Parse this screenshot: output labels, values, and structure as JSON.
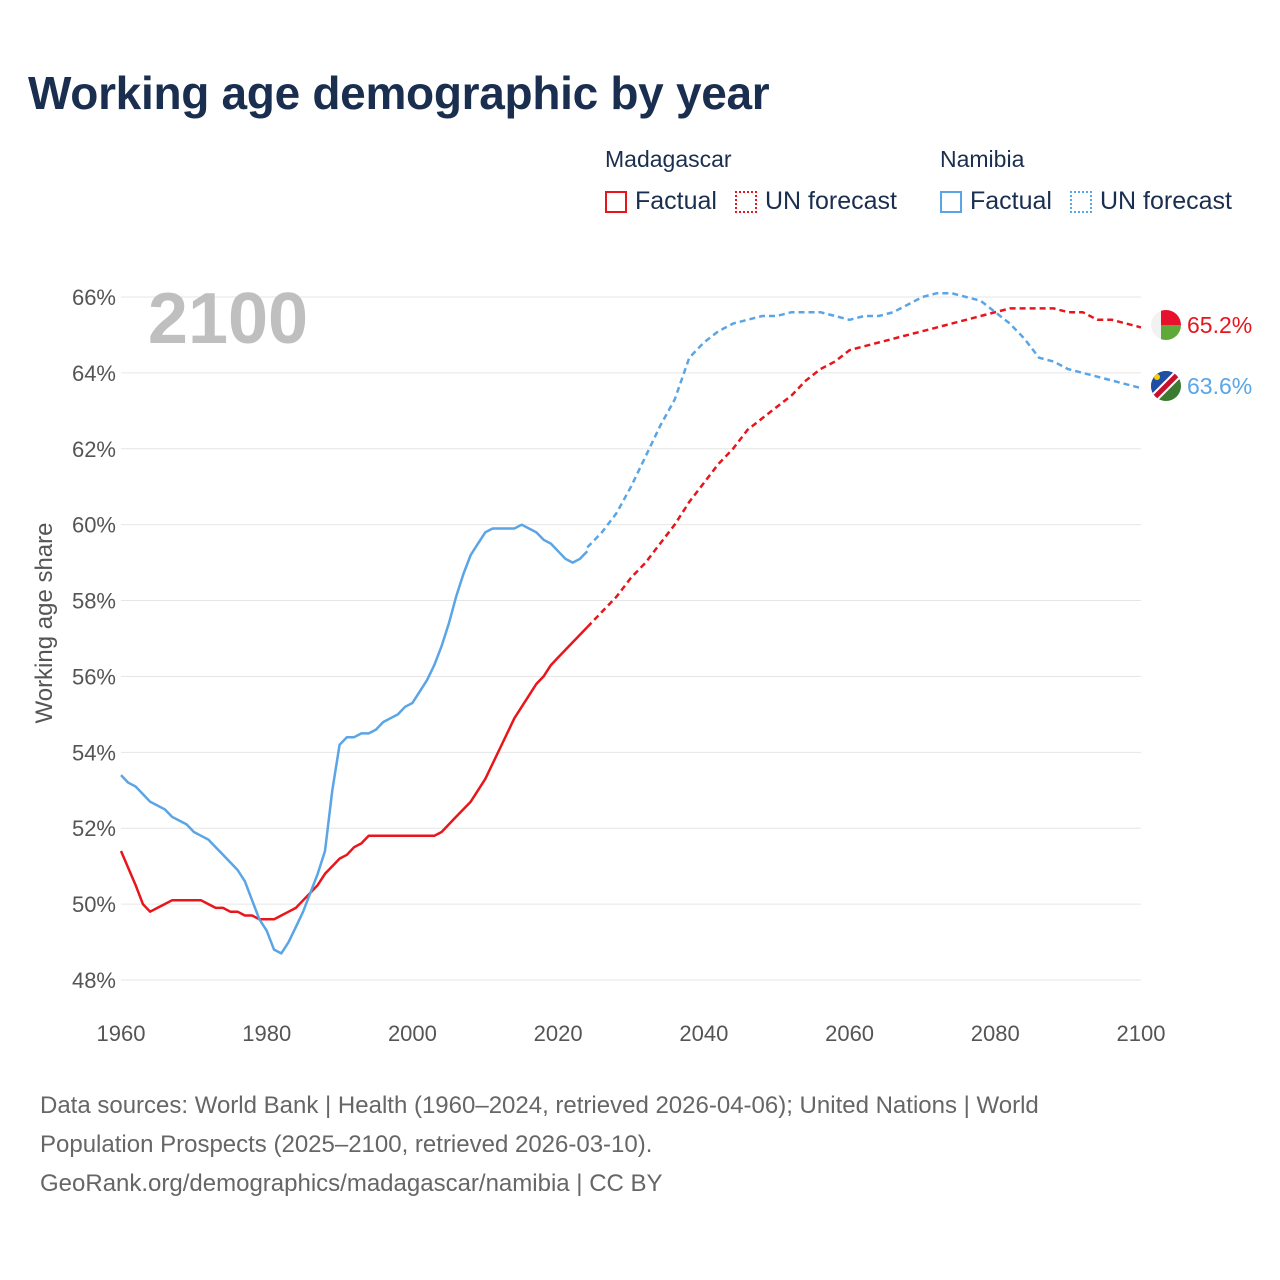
{
  "title": "Working age demographic by year",
  "legend": {
    "madagascar": {
      "name": "Madagascar",
      "factual": "Factual",
      "forecast": "UN forecast"
    },
    "namibia": {
      "name": "Namibia",
      "factual": "Factual",
      "forecast": "UN forecast"
    }
  },
  "colors": {
    "madagascar": "#e8151b",
    "namibia": "#5aa5e6"
  },
  "source": {
    "line1": "Data sources: World Bank | Health (1960–2024, retrieved 2026-04-06); United Nations | World",
    "line2": "Population Prospects (2025–2100, retrieved 2026-03-10).",
    "line3": "GeoRank.org/demographics/madagascar/namibia | CC BY"
  },
  "chart_data": {
    "type": "line",
    "title": "Working age demographic by year",
    "current_year_label": "2100",
    "xlabel": "",
    "ylabel": "Working age share",
    "xlim": [
      1960,
      2100
    ],
    "ylim": [
      47.5,
      66.5
    ],
    "x_ticks": [
      1960,
      1980,
      2000,
      2020,
      2040,
      2060,
      2080,
      2100
    ],
    "y_ticks": [
      48,
      50,
      52,
      54,
      56,
      58,
      60,
      62,
      64,
      66
    ],
    "y_tick_labels": [
      "48%",
      "50%",
      "52%",
      "54%",
      "56%",
      "58%",
      "60%",
      "62%",
      "64%",
      "66%"
    ],
    "grid": true,
    "series": [
      {
        "name": "Madagascar",
        "color": "#e8151b",
        "end_label": "65.2%",
        "factual": {
          "x": [
            1960,
            1962,
            1963,
            1964,
            1965,
            1966,
            1967,
            1968,
            1969,
            1970,
            1971,
            1972,
            1973,
            1974,
            1975,
            1976,
            1977,
            1978,
            1979,
            1980,
            1981,
            1982,
            1983,
            1984,
            1985,
            1986,
            1987,
            1988,
            1989,
            1990,
            1991,
            1992,
            1993,
            1994,
            1995,
            2000,
            2003,
            2004,
            2006,
            2008,
            2010,
            2012,
            2014,
            2016,
            2017,
            2018,
            2019,
            2020,
            2022,
            2024
          ],
          "y": [
            51.4,
            50.5,
            50.0,
            49.8,
            49.9,
            50.0,
            50.1,
            50.1,
            50.1,
            50.1,
            50.1,
            50.0,
            49.9,
            49.9,
            49.8,
            49.8,
            49.7,
            49.7,
            49.6,
            49.6,
            49.6,
            49.7,
            49.8,
            49.9,
            50.1,
            50.3,
            50.5,
            50.8,
            51.0,
            51.2,
            51.3,
            51.5,
            51.6,
            51.8,
            51.8,
            51.8,
            51.8,
            51.9,
            52.3,
            52.7,
            53.3,
            54.1,
            54.9,
            55.5,
            55.8,
            56.0,
            56.3,
            56.5,
            56.9,
            57.3
          ]
        },
        "forecast": {
          "x": [
            2024,
            2026,
            2028,
            2030,
            2032,
            2034,
            2036,
            2038,
            2040,
            2042,
            2044,
            2046,
            2048,
            2050,
            2052,
            2054,
            2056,
            2058,
            2060,
            2062,
            2064,
            2066,
            2068,
            2070,
            2072,
            2074,
            2076,
            2078,
            2080,
            2082,
            2084,
            2086,
            2088,
            2090,
            2092,
            2094,
            2096,
            2098,
            2100
          ],
          "y": [
            57.3,
            57.7,
            58.1,
            58.6,
            59.0,
            59.5,
            60.0,
            60.6,
            61.1,
            61.6,
            62.0,
            62.5,
            62.8,
            63.1,
            63.4,
            63.8,
            64.1,
            64.3,
            64.6,
            64.7,
            64.8,
            64.9,
            65.0,
            65.1,
            65.2,
            65.3,
            65.4,
            65.5,
            65.6,
            65.7,
            65.7,
            65.7,
            65.7,
            65.6,
            65.6,
            65.4,
            65.4,
            65.3,
            65.2
          ]
        }
      },
      {
        "name": "Namibia",
        "color": "#5aa5e6",
        "end_label": "63.6%",
        "factual": {
          "x": [
            1960,
            1961,
            1962,
            1963,
            1964,
            1965,
            1966,
            1967,
            1968,
            1969,
            1970,
            1971,
            1972,
            1973,
            1974,
            1975,
            1976,
            1977,
            1978,
            1979,
            1980,
            1981,
            1982,
            1983,
            1984,
            1985,
            1986,
            1987,
            1988,
            1989,
            1990,
            1991,
            1992,
            1993,
            1994,
            1995,
            1996,
            1997,
            1998,
            1999,
            2000,
            2001,
            2002,
            2003,
            2004,
            2005,
            2006,
            2007,
            2008,
            2009,
            2010,
            2011,
            2012,
            2013,
            2014,
            2015,
            2016,
            2017,
            2018,
            2019,
            2020,
            2021,
            2022,
            2023,
            2024
          ],
          "y": [
            53.4,
            53.2,
            53.1,
            52.9,
            52.7,
            52.6,
            52.5,
            52.3,
            52.2,
            52.1,
            51.9,
            51.8,
            51.7,
            51.5,
            51.3,
            51.1,
            50.9,
            50.6,
            50.1,
            49.6,
            49.3,
            48.8,
            48.7,
            49.0,
            49.4,
            49.8,
            50.3,
            50.8,
            51.4,
            53.0,
            54.2,
            54.4,
            54.4,
            54.5,
            54.5,
            54.6,
            54.8,
            54.9,
            55.0,
            55.2,
            55.3,
            55.6,
            55.9,
            56.3,
            56.8,
            57.4,
            58.1,
            58.7,
            59.2,
            59.5,
            59.8,
            59.9,
            59.9,
            59.9,
            59.9,
            60.0,
            59.9,
            59.8,
            59.6,
            59.5,
            59.3,
            59.1,
            59.0,
            59.1,
            59.3
          ]
        },
        "forecast": {
          "x": [
            2024,
            2026,
            2028,
            2030,
            2032,
            2034,
            2036,
            2038,
            2040,
            2042,
            2044,
            2046,
            2048,
            2050,
            2052,
            2054,
            2056,
            2058,
            2060,
            2062,
            2064,
            2066,
            2068,
            2070,
            2072,
            2074,
            2076,
            2078,
            2080,
            2082,
            2084,
            2086,
            2088,
            2090,
            2092,
            2094,
            2096,
            2098,
            2100
          ],
          "y": [
            59.4,
            59.8,
            60.3,
            61.0,
            61.8,
            62.6,
            63.3,
            64.4,
            64.8,
            65.1,
            65.3,
            65.4,
            65.5,
            65.5,
            65.6,
            65.6,
            65.6,
            65.5,
            65.4,
            65.5,
            65.5,
            65.6,
            65.8,
            66.0,
            66.1,
            66.1,
            66.0,
            65.9,
            65.6,
            65.3,
            64.9,
            64.4,
            64.3,
            64.1,
            64.0,
            63.9,
            63.8,
            63.7,
            63.6
          ]
        }
      }
    ]
  }
}
